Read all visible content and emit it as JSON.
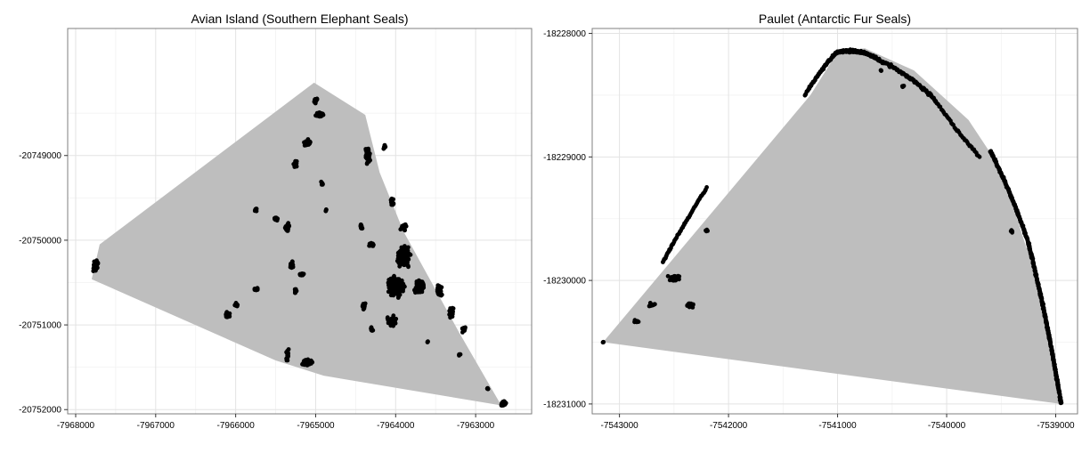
{
  "chart_data": [
    {
      "type": "scatter",
      "title": "Avian Island (Southern Elephant Seals)",
      "xlabel": "",
      "ylabel": "",
      "xlim": [
        -7968100,
        -7962300
      ],
      "ylim": [
        -20752050,
        -20747500
      ],
      "xticks": [
        -7968000,
        -7967000,
        -7966000,
        -7965000,
        -7964000,
        -7963000
      ],
      "yticks": [
        -20749000,
        -20750000,
        -20751000,
        -20752000
      ],
      "xtick_labels": [
        "-7968000",
        "-7967000",
        "-7966000",
        "-7965000",
        "-7964000",
        "-7963000"
      ],
      "ytick_labels": [
        "-20749000",
        "-20750000",
        "-20751000",
        "-20752000"
      ],
      "grid": true,
      "hull_color": "#bebebe",
      "point_color": "#000000",
      "hull": [
        [
          -7965020,
          -20748140
        ],
        [
          -7964380,
          -20748520
        ],
        [
          -7964200,
          -20749200
        ],
        [
          -7963900,
          -20749900
        ],
        [
          -7963200,
          -20751100
        ],
        [
          -7962680,
          -20751950
        ],
        [
          -7964900,
          -20751600
        ],
        [
          -7965500,
          -20751420
        ],
        [
          -7967800,
          -20750460
        ],
        [
          -7967700,
          -20750050
        ]
      ],
      "clusters": [
        [
          -7967750,
          -20750300,
          70,
          150,
          60
        ],
        [
          -7965000,
          -20748350,
          60,
          80,
          12
        ],
        [
          -7964950,
          -20748520,
          130,
          80,
          40
        ],
        [
          -7965100,
          -20748850,
          120,
          110,
          25
        ],
        [
          -7965250,
          -20749100,
          60,
          120,
          10
        ],
        [
          -7964920,
          -20749330,
          40,
          50,
          6
        ],
        [
          -7964350,
          -20749000,
          80,
          250,
          45
        ],
        [
          -7964140,
          -20748900,
          40,
          80,
          8
        ],
        [
          -7965750,
          -20749640,
          60,
          60,
          10
        ],
        [
          -7965500,
          -20749750,
          60,
          90,
          14
        ],
        [
          -7965350,
          -20749850,
          80,
          120,
          20
        ],
        [
          -7965300,
          -20750300,
          60,
          120,
          30
        ],
        [
          -7965180,
          -20750400,
          80,
          80,
          14
        ],
        [
          -7965250,
          -20750600,
          50,
          70,
          8
        ],
        [
          -7965750,
          -20750580,
          80,
          50,
          15
        ],
        [
          -7966100,
          -20750880,
          80,
          80,
          25
        ],
        [
          -7966000,
          -20750760,
          60,
          60,
          10
        ],
        [
          -7965350,
          -20751350,
          50,
          200,
          20
        ],
        [
          -7965100,
          -20751450,
          180,
          100,
          60
        ],
        [
          -7964870,
          -20749650,
          40,
          40,
          4
        ],
        [
          -7964430,
          -20749840,
          30,
          90,
          12
        ],
        [
          -7964300,
          -20750050,
          80,
          80,
          20
        ],
        [
          -7964040,
          -20749550,
          60,
          120,
          15
        ],
        [
          -7963900,
          -20749850,
          100,
          100,
          25
        ],
        [
          -7963900,
          -20750200,
          200,
          300,
          150
        ],
        [
          -7964000,
          -20750550,
          250,
          280,
          250
        ],
        [
          -7963700,
          -20750550,
          150,
          200,
          90
        ],
        [
          -7963450,
          -20750600,
          100,
          180,
          40
        ],
        [
          -7963300,
          -20750850,
          80,
          150,
          30
        ],
        [
          -7963150,
          -20751050,
          60,
          100,
          20
        ],
        [
          -7964050,
          -20750950,
          150,
          150,
          60
        ],
        [
          -7964400,
          -20750780,
          60,
          100,
          15
        ],
        [
          -7964300,
          -20751050,
          40,
          80,
          10
        ],
        [
          -7963600,
          -20751200,
          30,
          30,
          4
        ],
        [
          -7963200,
          -20751350,
          40,
          40,
          6
        ],
        [
          -7962850,
          -20751750,
          40,
          40,
          6
        ],
        [
          -7962650,
          -20751930,
          80,
          80,
          50
        ]
      ]
    },
    {
      "type": "scatter",
      "title": "Paulet (Antarctic Fur Seals)",
      "xlabel": "",
      "ylabel": "",
      "xlim": [
        -7543250,
        -7538800
      ],
      "ylim": [
        -18231080,
        -18227960
      ],
      "xticks": [
        -7543000,
        -7542000,
        -7541000,
        -7540000,
        -7539000
      ],
      "yticks": [
        -18228000,
        -18229000,
        -18230000,
        -18231000
      ],
      "xtick_labels": [
        "-7543000",
        "-7542000",
        "-7541000",
        "-7540000",
        "-7539000"
      ],
      "ytick_labels": [
        "-18228000",
        "-18229000",
        "-18230000",
        "-18231000"
      ],
      "grid": true,
      "hull_color": "#bebebe",
      "point_color": "#000000",
      "hull": [
        [
          -7543150,
          -18230500
        ],
        [
          -7541250,
          -18228500
        ],
        [
          -7541000,
          -18228150
        ],
        [
          -7540750,
          -18228120
        ],
        [
          -7540300,
          -18228300
        ],
        [
          -7539800,
          -18228700
        ],
        [
          -7539500,
          -18229100
        ],
        [
          -7539100,
          -18230200
        ],
        [
          -7538950,
          -18231000
        ]
      ],
      "arcs": [
        [
          -7541000,
          -18228150,
          -7540800,
          -18228120,
          -7540650,
          -18228200,
          4,
          14,
          130
        ],
        [
          -7541300,
          -18228500,
          -7541100,
          -18228220,
          -7541000,
          -18228150,
          4,
          12,
          70
        ],
        [
          -7540650,
          -18228200,
          -7540300,
          -18228350,
          -7540100,
          -18228550,
          5,
          18,
          90
        ],
        [
          -7540100,
          -18228550,
          -7539900,
          -18228800,
          -7539700,
          -18229000,
          4,
          12,
          40
        ],
        [
          -7539600,
          -18228950,
          -7539400,
          -18229300,
          -7539250,
          -18229700,
          5,
          14,
          160
        ],
        [
          -7539250,
          -18229700,
          -7539080,
          -18230300,
          -7538950,
          -18231000,
          6,
          22,
          300
        ],
        [
          -7542600,
          -18229850,
          -7542450,
          -18229600,
          -7542200,
          -18229250,
          4,
          10,
          60
        ]
      ],
      "clusters": [
        [
          -7540400,
          -18228430,
          30,
          20,
          6
        ],
        [
          -7540600,
          -18228300,
          20,
          20,
          4
        ],
        [
          -7542500,
          -18229980,
          120,
          60,
          60
        ],
        [
          -7542350,
          -18230200,
          70,
          60,
          30
        ],
        [
          -7542700,
          -18230200,
          80,
          50,
          15
        ],
        [
          -7542850,
          -18230330,
          60,
          30,
          8
        ],
        [
          -7543150,
          -18230500,
          15,
          10,
          4
        ],
        [
          -7542200,
          -18229600,
          30,
          30,
          4
        ],
        [
          -7539400,
          -18229600,
          30,
          40,
          6
        ]
      ]
    }
  ]
}
